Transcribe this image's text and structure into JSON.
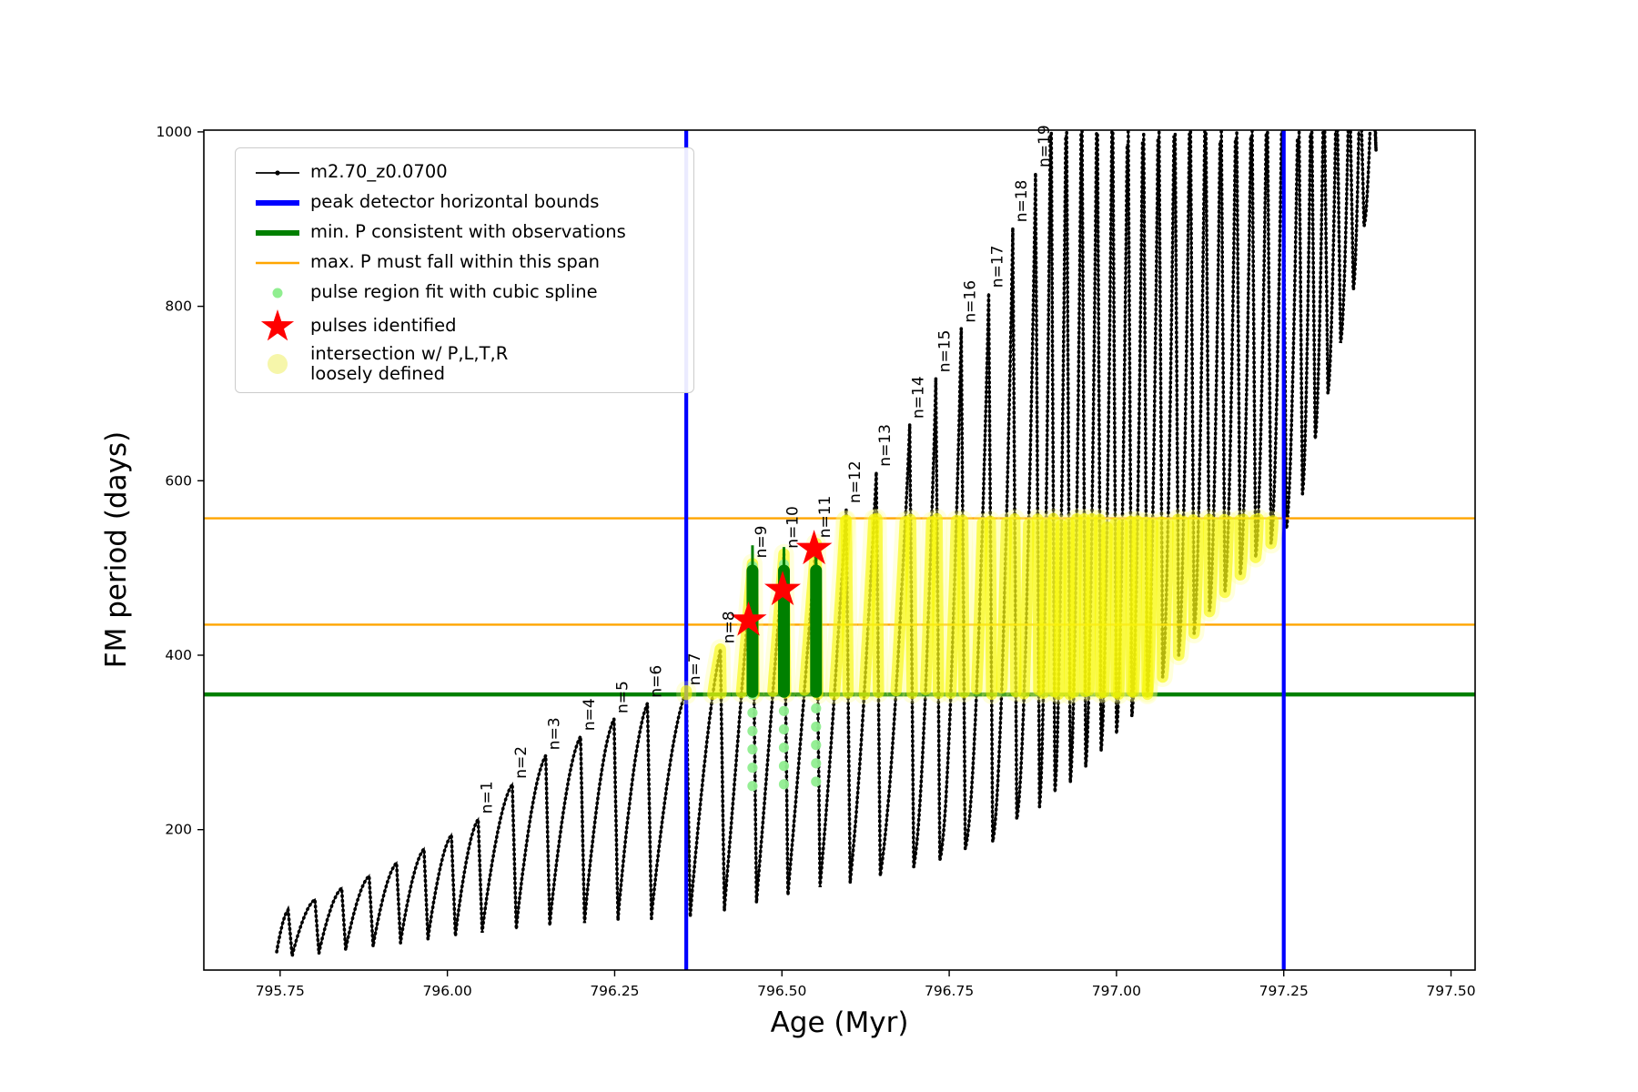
{
  "figure_title": "",
  "colors": {
    "track": "#000000",
    "peak_bounds": "#0000ff",
    "min_p": "#008000",
    "max_p_span": "#ffa500",
    "spline_dots": "#90ee90",
    "stars": "#ff0000",
    "intersection": "#f7f700",
    "intersection_pale": "#f6f6aa",
    "legend_border": "#cccccc"
  },
  "legend": {
    "items": [
      {
        "label": "m2.70_z0.0700",
        "marker": "black-line-with-dot"
      },
      {
        "label": "peak detector horizontal bounds",
        "marker": "blue-thick-line"
      },
      {
        "label": "min. P consistent with observations",
        "marker": "green-thick-line"
      },
      {
        "label": "max. P must fall within this span",
        "marker": "orange-line"
      },
      {
        "label": "pulse region fit with cubic spline",
        "marker": "lightgreen-dot"
      },
      {
        "label": "pulses identified",
        "marker": "red-star"
      },
      {
        "label": "intersection w/ P,L,T,R\nloosely defined",
        "marker": "pale-yellow-dot"
      }
    ]
  },
  "chart_data": {
    "type": "line",
    "title": "",
    "xlabel": "Age (Myr)",
    "ylabel": "FM period (days)",
    "xlim": [
      795.636,
      797.536
    ],
    "ylim": [
      39,
      1002
    ],
    "x_ticks": [
      795.75,
      796.0,
      796.25,
      796.5,
      796.75,
      797.0,
      797.25,
      797.5
    ],
    "x_tick_labels": [
      "795.75",
      "796.00",
      "796.25",
      "796.50",
      "796.75",
      "797.00",
      "797.25",
      "797.50"
    ],
    "y_ticks": [
      200,
      400,
      600,
      800,
      1000
    ],
    "y_tick_labels": [
      "200",
      "400",
      "600",
      "800",
      "1000"
    ],
    "grid": false,
    "legend_position": "upper left",
    "series_label": "m2.70_z0.0700",
    "peak_detector_bounds_myr": [
      796.357,
      797.25
    ],
    "min_P_days": 355,
    "max_P_span_days": [
      435,
      557
    ],
    "intersection_band_days": [
      355,
      557
    ],
    "track_start": {
      "age": 795.745,
      "period": 60
    },
    "pulses": [
      {
        "n": "",
        "age": 795.762,
        "peak": 108,
        "trough_after": 55
      },
      {
        "n": "",
        "age": 795.802,
        "peak": 120,
        "trough_after": 58
      },
      {
        "n": "",
        "age": 795.842,
        "peak": 133,
        "trough_after": 62
      },
      {
        "n": "",
        "age": 795.883,
        "peak": 147,
        "trough_after": 66
      },
      {
        "n": "",
        "age": 795.924,
        "peak": 162,
        "trough_after": 70
      },
      {
        "n": "",
        "age": 795.965,
        "peak": 178,
        "trough_after": 74
      },
      {
        "n": "",
        "age": 796.006,
        "peak": 194,
        "trough_after": 78
      },
      {
        "n": "n=1",
        "age": 796.046,
        "peak": 212,
        "trough_after": 82
      },
      {
        "n": "n=2",
        "age": 796.097,
        "peak": 252,
        "trough_after": 86
      },
      {
        "n": "n=3",
        "age": 796.147,
        "peak": 285,
        "trough_after": 90
      },
      {
        "n": "n=4",
        "age": 796.199,
        "peak": 307,
        "trough_after": 93
      },
      {
        "n": "n=5",
        "age": 796.249,
        "peak": 327,
        "trough_after": 96
      },
      {
        "n": "n=6",
        "age": 796.299,
        "peak": 345,
        "trough_after": 98
      },
      {
        "n": "n=7",
        "age": 796.357,
        "peak": 359,
        "trough_after": 100
      },
      {
        "n": "n=8",
        "age": 796.408,
        "peak": 407,
        "trough_after": 107
      },
      {
        "n": "n=9",
        "age": 796.456,
        "peak": 505,
        "trough_after": 116
      },
      {
        "n": "n=10",
        "age": 796.503,
        "peak": 516,
        "trough_after": 125
      },
      {
        "n": "n=11",
        "age": 796.551,
        "peak": 528,
        "trough_after": 134
      },
      {
        "n": "n=12",
        "age": 796.596,
        "peak": 568,
        "trough_after": 139
      },
      {
        "n": "n=13",
        "age": 796.641,
        "peak": 610,
        "trough_after": 147
      },
      {
        "n": "n=14",
        "age": 796.691,
        "peak": 665,
        "trough_after": 157
      },
      {
        "n": "n=15",
        "age": 796.73,
        "peak": 718,
        "trough_after": 165
      },
      {
        "n": "n=16",
        "age": 796.768,
        "peak": 775,
        "trough_after": 178
      },
      {
        "n": "n=17",
        "age": 796.809,
        "peak": 815,
        "trough_after": 186
      },
      {
        "n": "n=18",
        "age": 796.845,
        "peak": 890,
        "trough_after": 212
      },
      {
        "n": "n=19",
        "age": 796.879,
        "peak": 953,
        "trough_after": 226
      },
      {
        "n": "",
        "age": 796.902,
        "peak": 1075,
        "trough_after": 243
      },
      {
        "n": "",
        "age": 796.925,
        "peak": 1075,
        "trough_after": 254
      },
      {
        "n": "",
        "age": 796.948,
        "peak": 1075,
        "trough_after": 272
      },
      {
        "n": "",
        "age": 796.971,
        "peak": 1075,
        "trough_after": 290
      },
      {
        "n": "",
        "age": 796.994,
        "peak": 1075,
        "trough_after": 310
      },
      {
        "n": "",
        "age": 797.017,
        "peak": 1075,
        "trough_after": 330
      },
      {
        "n": "",
        "age": 797.04,
        "peak": 1075,
        "trough_after": 352
      },
      {
        "n": "",
        "age": 797.063,
        "peak": 1075,
        "trough_after": 375
      },
      {
        "n": "",
        "age": 797.087,
        "peak": 1075,
        "trough_after": 400
      },
      {
        "n": "",
        "age": 797.11,
        "peak": 1075,
        "trough_after": 425
      },
      {
        "n": "",
        "age": 797.133,
        "peak": 1075,
        "trough_after": 450
      },
      {
        "n": "",
        "age": 797.156,
        "peak": 1075,
        "trough_after": 472
      },
      {
        "n": "",
        "age": 797.179,
        "peak": 1075,
        "trough_after": 492
      },
      {
        "n": "",
        "age": 797.202,
        "peak": 1075,
        "trough_after": 512
      },
      {
        "n": "",
        "age": 797.225,
        "peak": 1075,
        "trough_after": 528
      },
      {
        "n": "",
        "age": 797.248,
        "peak": 1075,
        "trough_after": 545
      },
      {
        "n": "",
        "age": 797.272,
        "peak": 1075,
        "trough_after": 585
      },
      {
        "n": "",
        "age": 797.291,
        "peak": 1075,
        "trough_after": 648
      },
      {
        "n": "",
        "age": 797.31,
        "peak": 1075,
        "trough_after": 700
      },
      {
        "n": "",
        "age": 797.329,
        "peak": 1075,
        "trough_after": 758
      },
      {
        "n": "",
        "age": 797.348,
        "peak": 1075,
        "trough_after": 819
      },
      {
        "n": "",
        "age": 797.364,
        "peak": 1075,
        "trough_after": 892
      },
      {
        "n": "",
        "age": 797.382,
        "peak": 1075,
        "trough_after": 978
      }
    ],
    "stars_identified": [
      {
        "pulse": "n=9",
        "age": 796.45,
        "period": 440
      },
      {
        "pulse": "n=10",
        "age": 796.501,
        "period": 475
      },
      {
        "pulse": "n=11",
        "age": 796.548,
        "period": 522
      }
    ],
    "spline_fit_columns": [
      {
        "pulse": "n=9",
        "age": 796.456,
        "bar_from": 358,
        "bar_to": 497,
        "tip": 526,
        "dots_from": 250,
        "dots_to": 505
      },
      {
        "pulse": "n=10",
        "age": 796.503,
        "bar_from": 358,
        "bar_to": 497,
        "tip": 524,
        "dots_from": 252,
        "dots_to": 505
      },
      {
        "pulse": "n=11",
        "age": 796.551,
        "bar_from": 358,
        "bar_to": 497,
        "tip": 526,
        "dots_from": 255,
        "dots_to": 505
      }
    ]
  }
}
